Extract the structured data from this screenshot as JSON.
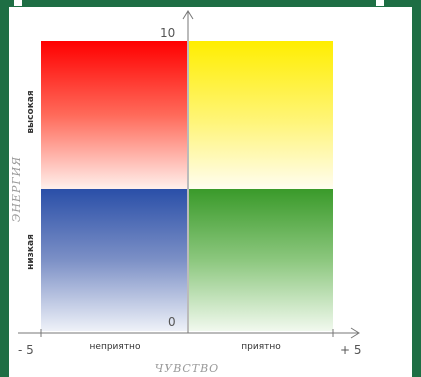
{
  "diagram": {
    "x_axis": {
      "title": "ЧУВСТВО",
      "min_label": "- 5",
      "max_label": "+ 5",
      "negative_label": "неприятно",
      "positive_label": "приятно"
    },
    "y_axis": {
      "title": "ЭНЕРГИЯ",
      "max_label": "10",
      "zero_label": "0",
      "high_label": "высокая",
      "low_label": "низкая"
    },
    "quadrants": [
      {
        "id": "high-unpleasant",
        "color": "#ff0000"
      },
      {
        "id": "high-pleasant",
        "color": "#ffee00"
      },
      {
        "id": "low-unpleasant",
        "color": "#2a4fa8"
      },
      {
        "id": "low-pleasant",
        "color": "#3a9a2a"
      }
    ],
    "frame_color": "#1e6e44"
  }
}
